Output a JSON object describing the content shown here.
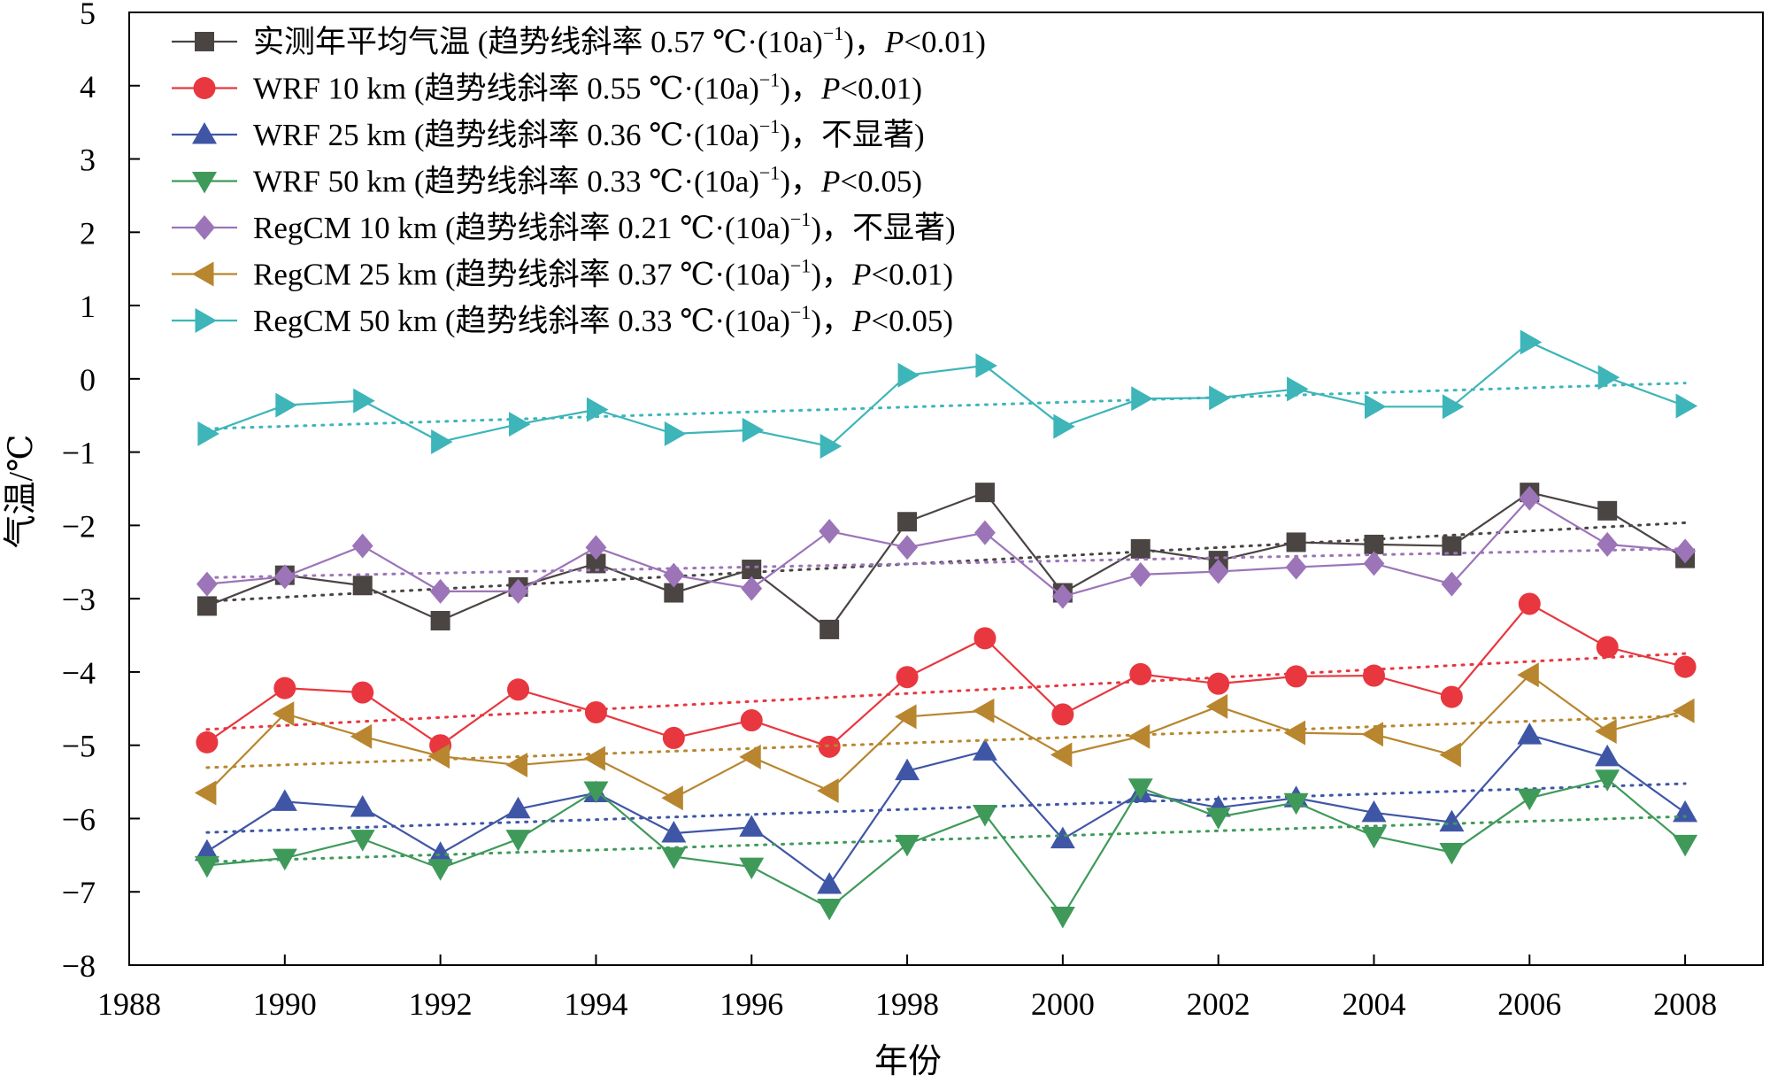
{
  "chart_data": {
    "type": "line",
    "title": "",
    "xlabel": "年份",
    "ylabel": "气温/℃",
    "xlim": [
      1988,
      2009
    ],
    "ylim": [
      -8,
      5
    ],
    "xticks": [
      1988,
      1990,
      1992,
      1994,
      1996,
      1998,
      2000,
      2002,
      2004,
      2006,
      2008
    ],
    "yticks": [
      5,
      4,
      3,
      2,
      1,
      0,
      -1,
      -2,
      -3,
      -4,
      -5,
      -6,
      -7,
      -8
    ],
    "ytick_labels": [
      "5",
      "4",
      "3",
      "2",
      "1",
      "0",
      "−1",
      "−2",
      "−3",
      "−4",
      "−5",
      "−6",
      "−7",
      "−8"
    ],
    "legend_position": "top-left",
    "grid": false,
    "x": [
      1989,
      1990,
      1991,
      1992,
      1993,
      1994,
      1995,
      1996,
      1997,
      1998,
      1999,
      2000,
      2001,
      2002,
      2003,
      2004,
      2005,
      2006,
      2007,
      2008
    ],
    "series": [
      {
        "name": "实测年平均气温",
        "legend_label": "实测年平均气温 (趋势线斜率 0.57 ℃·(10a)⁻¹，P<0.01)",
        "legend_prefix": "实测年平均气温 (趋势线斜率 0.57 ℃·(10a)",
        "legend_sup": "−1",
        "legend_mid": "，",
        "legend_p": "P",
        "legend_rest": "<0.01)",
        "color": "#4a4443",
        "marker": "square",
        "values": [
          -3.1,
          -2.68,
          -2.82,
          -3.3,
          -2.84,
          -2.52,
          -2.92,
          -2.6,
          -3.42,
          -1.95,
          -1.55,
          -2.92,
          -2.32,
          -2.48,
          -2.23,
          -2.26,
          -2.28,
          -1.55,
          -1.8,
          -2.45
        ]
      },
      {
        "name": "WRF 10 km",
        "legend_label": "WRF 10 km (趋势线斜率 0.55 ℃·(10a)⁻¹，P<0.01)",
        "legend_prefix": "WRF 10 km (趋势线斜率 0.55 ℃·(10a)",
        "legend_sup": "−1",
        "legend_mid": "，",
        "legend_p": "P",
        "legend_rest": "<0.01)",
        "color": "#e8373f",
        "marker": "circle",
        "values": [
          -4.96,
          -4.22,
          -4.28,
          -5.0,
          -4.24,
          -4.55,
          -4.9,
          -4.66,
          -5.02,
          -4.07,
          -3.54,
          -4.58,
          -4.03,
          -4.16,
          -4.06,
          -4.05,
          -4.34,
          -3.07,
          -3.66,
          -3.93
        ]
      },
      {
        "name": "WRF 25 km",
        "legend_label": "WRF 25 km (趋势线斜率 0.36 ℃·(10a)⁻¹，不显著)",
        "legend_prefix": "WRF 25 km (趋势线斜率 0.36 ℃·(10a)",
        "legend_sup": "−1",
        "legend_mid": "，不显著)",
        "legend_p": "",
        "legend_rest": "",
        "color": "#3f56a6",
        "marker": "triangle-up",
        "values": [
          -6.45,
          -5.77,
          -5.85,
          -6.48,
          -5.87,
          -5.65,
          -6.2,
          -6.12,
          -6.9,
          -5.35,
          -5.08,
          -6.28,
          -5.65,
          -5.85,
          -5.72,
          -5.92,
          -6.05,
          -4.86,
          -5.16,
          -5.92
        ]
      },
      {
        "name": "WRF 50 km",
        "legend_label": "WRF 50 km (趋势线斜率 0.33 ℃·(10a)⁻¹，P<0.05)",
        "legend_prefix": "WRF 50 km (趋势线斜率 0.33 ℃·(10a)",
        "legend_sup": "−1",
        "legend_mid": "，",
        "legend_p": "P",
        "legend_rest": "<0.05)",
        "color": "#3f9a5a",
        "marker": "triangle-down",
        "values": [
          -6.64,
          -6.54,
          -6.28,
          -6.68,
          -6.28,
          -5.62,
          -6.52,
          -6.66,
          -7.22,
          -6.35,
          -5.94,
          -7.33,
          -5.58,
          -5.98,
          -5.78,
          -6.24,
          -6.46,
          -5.72,
          -5.46,
          -6.35
        ]
      },
      {
        "name": "RegCM 10 km",
        "legend_label": "RegCM 10 km (趋势线斜率 0.21 ℃·(10a)⁻¹，不显著)",
        "legend_prefix": "RegCM 10 km (趋势线斜率 0.21 ℃·(10a)",
        "legend_sup": "−1",
        "legend_mid": "，不显著)",
        "legend_p": "",
        "legend_rest": "",
        "color": "#9c74b8",
        "marker": "diamond",
        "values": [
          -2.8,
          -2.7,
          -2.28,
          -2.9,
          -2.9,
          -2.3,
          -2.68,
          -2.86,
          -2.08,
          -2.3,
          -2.1,
          -2.97,
          -2.67,
          -2.63,
          -2.57,
          -2.52,
          -2.8,
          -1.63,
          -2.26,
          -2.35
        ]
      },
      {
        "name": "RegCM 25 km",
        "legend_label": "RegCM 25 km (趋势线斜率 0.37 ℃·(10a)⁻¹，P<0.01)",
        "legend_prefix": "RegCM 25 km (趋势线斜率 0.37 ℃·(10a)",
        "legend_sup": "−1",
        "legend_mid": "，",
        "legend_p": "P",
        "legend_rest": "<0.01)",
        "color": "#b8862f",
        "marker": "triangle-left",
        "values": [
          -5.65,
          -4.57,
          -4.88,
          -5.15,
          -5.27,
          -5.18,
          -5.72,
          -5.16,
          -5.62,
          -4.61,
          -4.53,
          -5.13,
          -4.88,
          -4.47,
          -4.83,
          -4.85,
          -5.13,
          -4.04,
          -4.81,
          -4.53
        ]
      },
      {
        "name": "RegCM 50 km",
        "legend_label": "RegCM 50 km (趋势线斜率 0.33 ℃·(10a)⁻¹，P<0.05)",
        "legend_prefix": "RegCM 50 km (趋势线斜率 0.33 ℃·(10a)",
        "legend_sup": "−1",
        "legend_mid": "，",
        "legend_p": "P",
        "legend_rest": "<0.05)",
        "color": "#3db5b9",
        "marker": "triangle-right",
        "values": [
          -0.75,
          -0.36,
          -0.3,
          -0.86,
          -0.62,
          -0.42,
          -0.75,
          -0.7,
          -0.92,
          0.05,
          0.18,
          -0.65,
          -0.27,
          -0.26,
          -0.14,
          -0.38,
          -0.38,
          0.5,
          0.02,
          -0.37
        ]
      }
    ]
  }
}
